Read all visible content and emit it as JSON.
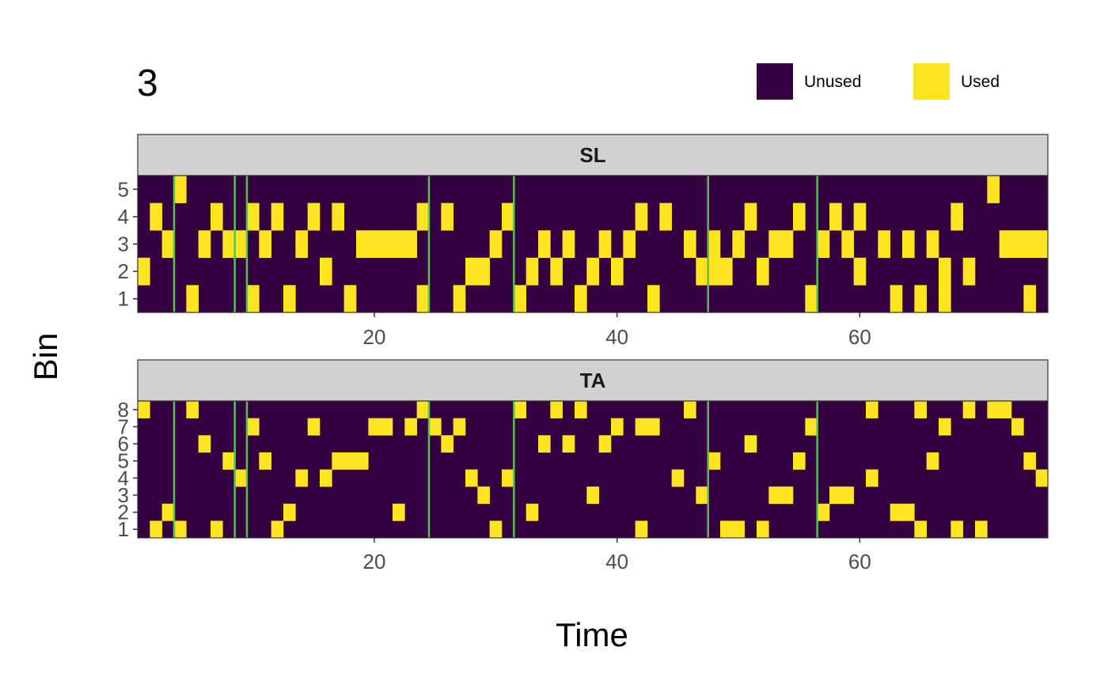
{
  "chart_data": {
    "type": "heatmap",
    "title": "3",
    "xlabel": "Time",
    "ylabel": "Bin",
    "x_ticks": [
      20,
      40,
      60
    ],
    "xlim": [
      0.5,
      75.5
    ],
    "grid": false,
    "legend": {
      "placement": "top-right",
      "items": [
        {
          "label": "Unused",
          "color": "#35003f"
        },
        {
          "label": "Used",
          "color": "#fde51f"
        }
      ]
    },
    "colors": {
      "unused": "#35003f",
      "used": "#fde51f",
      "vline": "#5cbf53",
      "strip": "#d1d1d1",
      "border": "#333333"
    },
    "vlines": [
      3.5,
      8.5,
      9.5,
      24.5,
      31.5,
      47.5,
      56.5
    ],
    "panels": [
      {
        "name": "SL",
        "bins": [
          1,
          2,
          3,
          4,
          5
        ],
        "used": {
          "5": [
            4,
            71
          ],
          "4": [
            2,
            7,
            10,
            12,
            15,
            17,
            24,
            26,
            31,
            42,
            44,
            51,
            55,
            58,
            60,
            68
          ],
          "3": [
            3,
            6,
            8,
            9,
            11,
            14,
            19,
            20,
            21,
            22,
            23,
            30,
            34,
            36,
            39,
            41,
            46,
            48,
            50,
            53,
            54,
            57,
            59,
            62,
            64,
            66,
            72,
            73,
            74,
            75
          ],
          "2": [
            1,
            16,
            28,
            29,
            33,
            35,
            38,
            40,
            47,
            48,
            49,
            52,
            60,
            67,
            69
          ],
          "1": [
            5,
            10,
            13,
            18,
            24,
            27,
            32,
            37,
            43,
            56,
            63,
            65,
            67,
            74
          ]
        }
      },
      {
        "name": "TA",
        "bins": [
          1,
          2,
          3,
          4,
          5,
          6,
          7,
          8
        ],
        "used": {
          "8": [
            1,
            5,
            24,
            32,
            35,
            37,
            46,
            61,
            65,
            69,
            71,
            72
          ],
          "7": [
            10,
            15,
            20,
            21,
            23,
            25,
            27,
            40,
            42,
            43,
            56,
            67,
            73
          ],
          "6": [
            6,
            26,
            34,
            36,
            39,
            51
          ],
          "5": [
            8,
            11,
            17,
            18,
            19,
            48,
            55,
            66,
            74
          ],
          "4": [
            9,
            14,
            16,
            28,
            31,
            45,
            61,
            75
          ],
          "3": [
            29,
            38,
            47,
            53,
            54,
            58,
            59
          ],
          "2": [
            3,
            13,
            22,
            33,
            57,
            63,
            64
          ],
          "1": [
            2,
            4,
            7,
            12,
            30,
            42,
            49,
            50,
            52,
            65,
            68,
            70
          ]
        }
      }
    ]
  }
}
